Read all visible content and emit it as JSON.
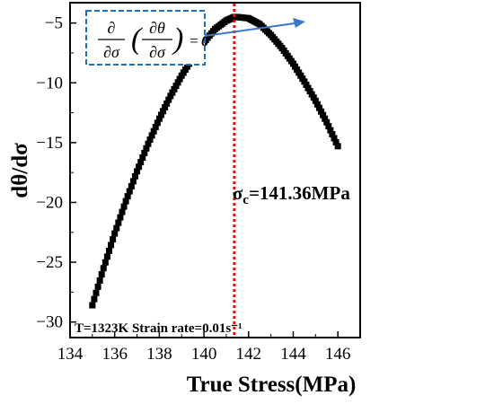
{
  "chart_data": {
    "type": "scatter",
    "xlabel": "True Stress(MPa)",
    "ylabel": "dθ/dσ",
    "xlim": [
      134,
      147
    ],
    "ylim": [
      -31.3,
      -3.3
    ],
    "x_ticks": [
      134,
      136,
      138,
      140,
      142,
      144,
      146
    ],
    "y_ticks": [
      -30,
      -25,
      -20,
      -15,
      -10,
      -5
    ],
    "grid": false,
    "series": [
      {
        "color": "#000000",
        "marker": "square",
        "x": [
          135.0,
          135.5,
          136.0,
          136.5,
          137.0,
          137.5,
          138.0,
          138.5,
          139.0,
          139.5,
          140.0,
          140.5,
          141.0,
          141.36,
          141.5,
          142.0,
          142.5,
          143.0,
          143.5,
          144.0,
          144.5,
          145.0,
          145.5,
          146.0
        ],
        "y": [
          -28.6,
          -25.5,
          -22.6,
          -19.9,
          -17.4,
          -15.1,
          -13.0,
          -11.1,
          -9.4,
          -7.9,
          -6.6,
          -5.5,
          -4.8,
          -4.5,
          -4.5,
          -4.6,
          -5.1,
          -6.0,
          -7.1,
          -8.4,
          -9.9,
          -11.5,
          -13.3,
          -15.3
        ]
      }
    ],
    "critical_line": {
      "x": 141.36,
      "color": "#ff0000",
      "style": "dotted"
    },
    "annotations": {
      "critical_stress": "σc=141.36MPa",
      "condition": "T=1323K Strain rate=0.01s⁻¹",
      "formula": "∂/∂σ(∂θ/∂σ)=0"
    },
    "colors": {
      "formula_box": "#1f6fbf",
      "arrow": "#3a77c7"
    }
  }
}
